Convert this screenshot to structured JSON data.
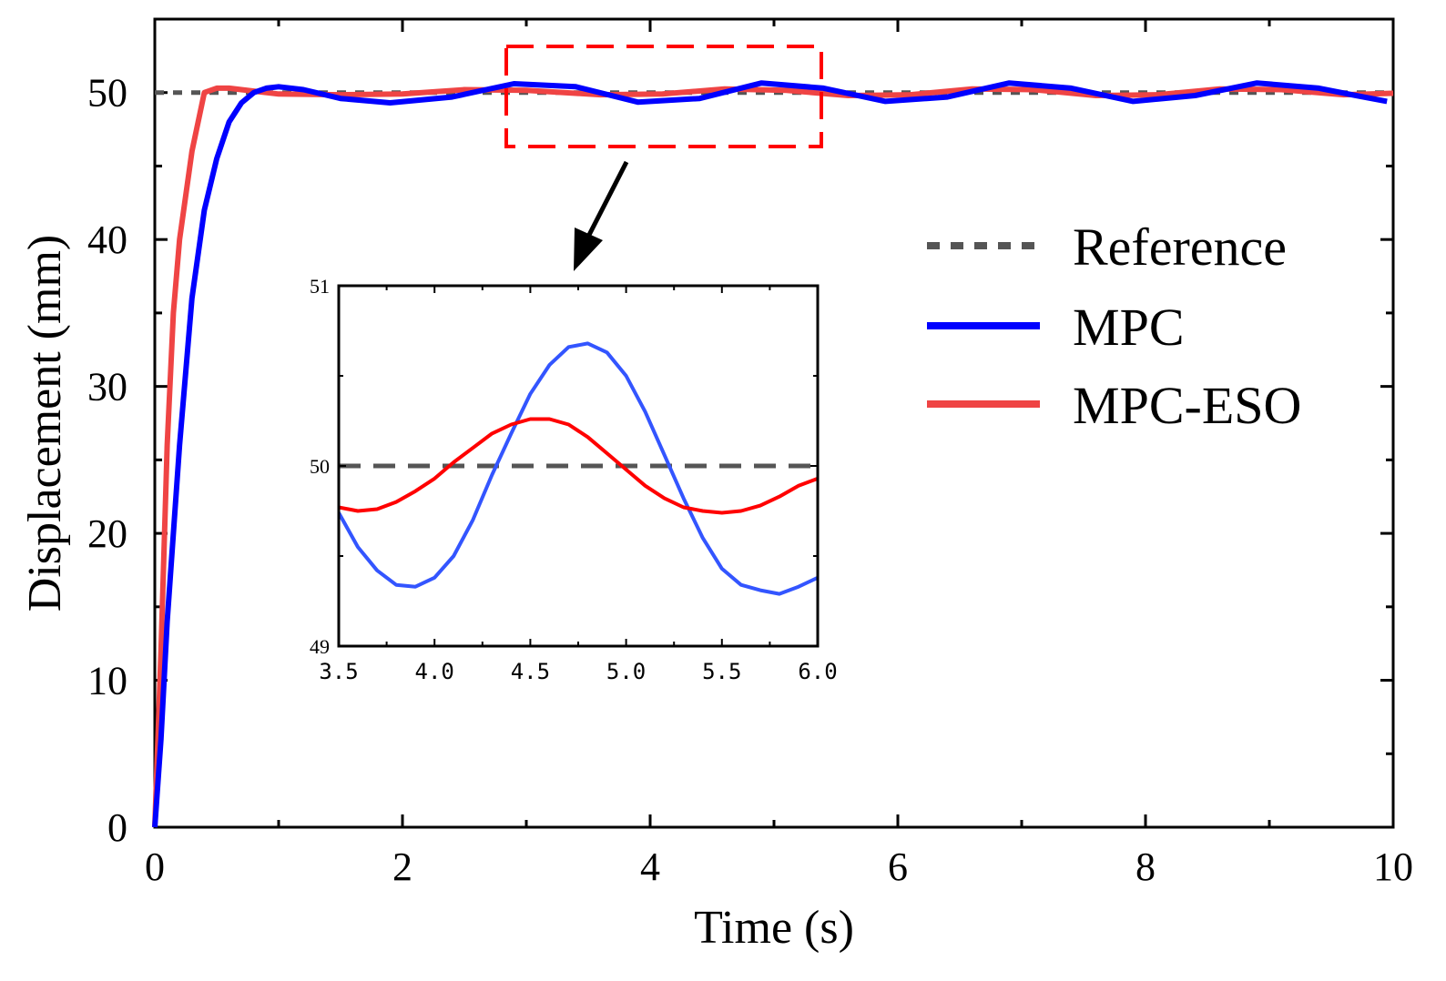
{
  "colors": {
    "reference": "#555555",
    "mpc": "#0000ff",
    "mpc_eso_main": "#ef4444",
    "mpc_eso_inset": "#ff0000",
    "mpc_inset": "#3355ff",
    "zoom_box": "#ff0000",
    "axis": "#000000"
  },
  "chart_data": [
    {
      "type": "line",
      "xlabel": "Time (s)",
      "ylabel": "Displacement (mm)",
      "xlim": [
        0,
        10
      ],
      "ylim": [
        0,
        55
      ],
      "x_ticks": [
        0,
        2,
        4,
        6,
        8,
        10
      ],
      "y_ticks": [
        0,
        10,
        20,
        30,
        40,
        50
      ],
      "x_tick_labels": [
        "0",
        "2",
        "4",
        "6",
        "8",
        "10"
      ],
      "y_tick_labels": [
        "0",
        "10",
        "20",
        "30",
        "40",
        "50"
      ],
      "legend_position": "right",
      "legend": [
        "Reference",
        "MPC",
        "MPC-ESO"
      ],
      "series": [
        {
          "name": "Reference",
          "style": "dotted",
          "points": [
            [
              0,
              50
            ],
            [
              10,
              50
            ]
          ]
        },
        {
          "name": "MPC",
          "style": "solid",
          "points": [
            [
              0,
              0
            ],
            [
              0.05,
              6
            ],
            [
              0.1,
              14
            ],
            [
              0.2,
              26
            ],
            [
              0.3,
              36
            ],
            [
              0.4,
              42
            ],
            [
              0.5,
              45.5
            ],
            [
              0.6,
              48
            ],
            [
              0.7,
              49.3
            ],
            [
              0.8,
              50.0
            ],
            [
              0.9,
              50.3
            ],
            [
              1.0,
              50.4
            ],
            [
              1.2,
              50.2
            ],
            [
              1.5,
              49.6
            ],
            [
              1.9,
              49.3
            ],
            [
              2.4,
              49.7
            ],
            [
              2.9,
              50.6
            ],
            [
              3.4,
              50.4
            ],
            [
              3.9,
              49.35
            ],
            [
              4.4,
              49.6
            ],
            [
              4.9,
              50.65
            ],
            [
              5.4,
              50.3
            ],
            [
              5.9,
              49.4
            ],
            [
              6.4,
              49.7
            ],
            [
              6.9,
              50.65
            ],
            [
              7.4,
              50.3
            ],
            [
              7.9,
              49.4
            ],
            [
              8.4,
              49.8
            ],
            [
              8.9,
              50.65
            ],
            [
              9.4,
              50.3
            ],
            [
              9.7,
              49.8
            ],
            [
              9.95,
              49.4
            ]
          ]
        },
        {
          "name": "MPC-ESO",
          "style": "solid",
          "points": [
            [
              0,
              0
            ],
            [
              0.05,
              12
            ],
            [
              0.1,
              26
            ],
            [
              0.15,
              35
            ],
            [
              0.2,
              40
            ],
            [
              0.3,
              46
            ],
            [
              0.4,
              50
            ],
            [
              0.5,
              50.3
            ],
            [
              0.6,
              50.3
            ],
            [
              0.8,
              50.1
            ],
            [
              1.0,
              49.9
            ],
            [
              1.5,
              49.85
            ],
            [
              2.0,
              49.9
            ],
            [
              2.5,
              50.2
            ],
            [
              3.0,
              50.15
            ],
            [
              3.6,
              49.85
            ],
            [
              4.1,
              49.9
            ],
            [
              4.6,
              50.25
            ],
            [
              5.1,
              50.15
            ],
            [
              5.6,
              49.8
            ],
            [
              6.1,
              49.85
            ],
            [
              6.6,
              50.25
            ],
            [
              7.1,
              50.2
            ],
            [
              7.6,
              49.8
            ],
            [
              8.1,
              49.85
            ],
            [
              8.6,
              50.25
            ],
            [
              9.1,
              50.2
            ],
            [
              9.6,
              49.85
            ],
            [
              10.0,
              49.95
            ]
          ]
        }
      ]
    },
    {
      "type": "line",
      "xlim": [
        3.5,
        6.0
      ],
      "ylim": [
        49,
        51
      ],
      "x_ticks": [
        3.5,
        4.0,
        4.5,
        5.0,
        5.5,
        6.0
      ],
      "y_ticks": [
        49,
        50,
        51
      ],
      "x_tick_labels": [
        "3.5",
        "4.0",
        "4.5",
        "5.0",
        "5.5",
        "6.0"
      ],
      "y_tick_labels": [
        "49",
        "50",
        "51"
      ],
      "series": [
        {
          "name": "Reference",
          "style": "dashed",
          "points": [
            [
              3.5,
              50
            ],
            [
              6.0,
              50
            ]
          ]
        },
        {
          "name": "MPC",
          "style": "solid",
          "points": [
            [
              3.5,
              49.74
            ],
            [
              3.6,
              49.55
            ],
            [
              3.7,
              49.42
            ],
            [
              3.8,
              49.34
            ],
            [
              3.9,
              49.33
            ],
            [
              4.0,
              49.38
            ],
            [
              4.1,
              49.5
            ],
            [
              4.2,
              49.7
            ],
            [
              4.3,
              49.95
            ],
            [
              4.4,
              50.18
            ],
            [
              4.5,
              50.4
            ],
            [
              4.6,
              50.56
            ],
            [
              4.7,
              50.66
            ],
            [
              4.8,
              50.68
            ],
            [
              4.9,
              50.63
            ],
            [
              5.0,
              50.5
            ],
            [
              5.1,
              50.3
            ],
            [
              5.2,
              50.06
            ],
            [
              5.3,
              49.82
            ],
            [
              5.4,
              49.6
            ],
            [
              5.5,
              49.43
            ],
            [
              5.6,
              49.34
            ],
            [
              5.7,
              49.31
            ],
            [
              5.8,
              49.29
            ],
            [
              5.9,
              49.33
            ],
            [
              6.0,
              49.38
            ]
          ]
        },
        {
          "name": "MPC-ESO",
          "style": "solid",
          "points": [
            [
              3.5,
              49.77
            ],
            [
              3.6,
              49.75
            ],
            [
              3.7,
              49.76
            ],
            [
              3.8,
              49.8
            ],
            [
              3.9,
              49.86
            ],
            [
              4.0,
              49.93
            ],
            [
              4.1,
              50.02
            ],
            [
              4.2,
              50.1
            ],
            [
              4.3,
              50.18
            ],
            [
              4.4,
              50.23
            ],
            [
              4.5,
              50.26
            ],
            [
              4.6,
              50.26
            ],
            [
              4.7,
              50.23
            ],
            [
              4.8,
              50.16
            ],
            [
              4.9,
              50.07
            ],
            [
              5.0,
              49.98
            ],
            [
              5.1,
              49.89
            ],
            [
              5.2,
              49.82
            ],
            [
              5.3,
              49.77
            ],
            [
              5.4,
              49.75
            ],
            [
              5.5,
              49.74
            ],
            [
              5.6,
              49.75
            ],
            [
              5.7,
              49.78
            ],
            [
              5.8,
              49.83
            ],
            [
              5.9,
              49.89
            ],
            [
              6.0,
              49.93
            ]
          ]
        }
      ]
    }
  ]
}
